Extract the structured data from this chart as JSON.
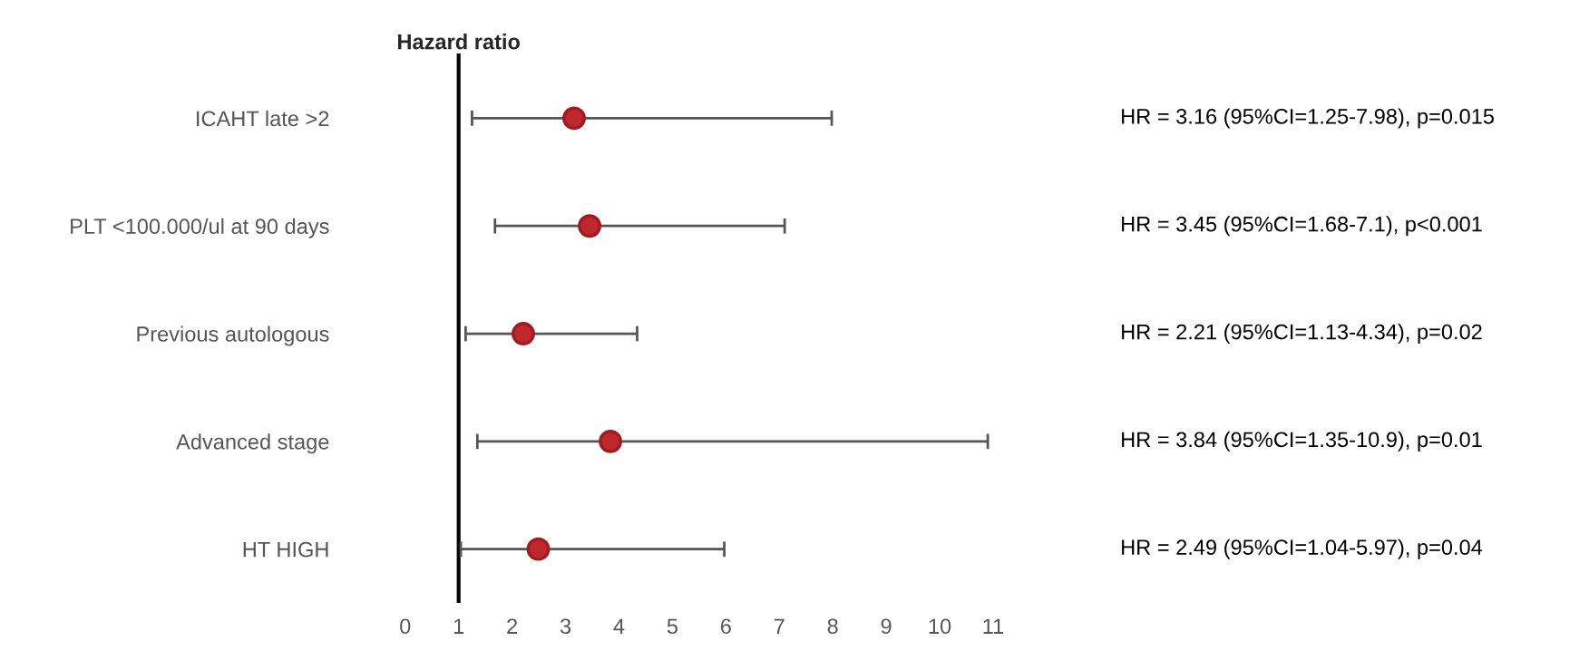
{
  "chart_data": {
    "type": "scatter",
    "orientation": "horizontal",
    "title": "Hazard ratio",
    "categories": [
      "ICAHT late >2",
      "PLT <100.000/ul at 90 days",
      "Previous autologous",
      "Advanced stage",
      "HT HIGH"
    ],
    "values": [
      3.16,
      3.45,
      2.21,
      3.84,
      2.49
    ],
    "errors": [
      [
        1.25,
        7.98
      ],
      [
        1.68,
        7.1
      ],
      [
        1.13,
        4.34
      ],
      [
        1.35,
        10.9
      ],
      [
        1.04,
        5.97
      ]
    ],
    "color": "#c0282d",
    "marker": "circle",
    "annotations": [
      "HR = 3.16 (95%CI=1.25-7.98), p=0.015",
      "HR = 3.45 (95%CI=1.68-7.1), p<0.001",
      "HR = 2.21 (95%CI=1.13-4.34), p=0.02",
      "HR = 3.84 (95%CI=1.35-10.9), p=0.01",
      "HR = 2.49 (95%CI=1.04-5.97), p=0.04"
    ],
    "xlim": [
      0,
      11
    ],
    "xticks": [
      0,
      1,
      2,
      3,
      4,
      5,
      6,
      7,
      8,
      9,
      10,
      11
    ],
    "ref_lines": [
      {
        "axis": "x",
        "value": 1,
        "color": "#000000"
      }
    ],
    "grid": false
  }
}
